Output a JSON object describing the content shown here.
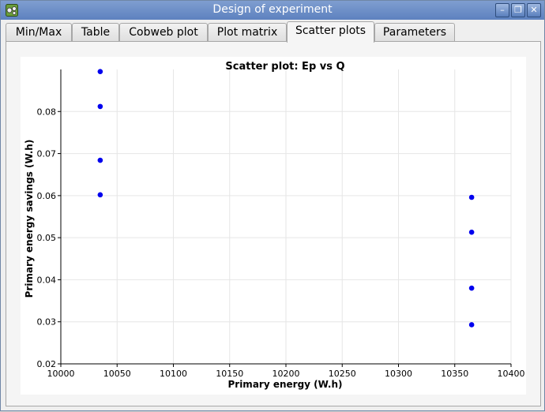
{
  "window": {
    "title": "Design of experiment",
    "buttons": {
      "minimize": "–",
      "restore": "❐",
      "close": "✕"
    }
  },
  "tabs": [
    {
      "label": "Min/Max",
      "active": false
    },
    {
      "label": "Table",
      "active": false
    },
    {
      "label": "Cobweb plot",
      "active": false
    },
    {
      "label": "Plot matrix",
      "active": false
    },
    {
      "label": "Scatter plots",
      "active": true
    },
    {
      "label": "Parameters",
      "active": false
    }
  ],
  "chart_data": {
    "type": "scatter",
    "title": "Scatter plot: Ep vs Q",
    "xlabel": "Primary energy (W.h)",
    "ylabel": "Primary energy savings (W.h)",
    "xlim": [
      10000,
      10400
    ],
    "ylim": [
      0.02,
      0.09
    ],
    "xticks": [
      "10000",
      "10050",
      "10100",
      "10150",
      "10200",
      "10250",
      "10300",
      "10350",
      "10400"
    ],
    "yticks": [
      "0.02",
      "0.03",
      "0.04",
      "0.05",
      "0.06",
      "0.07",
      "0.08"
    ],
    "grid": true,
    "color": "#0000ee",
    "points": [
      {
        "x": 10035,
        "y": 0.0895
      },
      {
        "x": 10035,
        "y": 0.0812
      },
      {
        "x": 10035,
        "y": 0.0684
      },
      {
        "x": 10035,
        "y": 0.0602
      },
      {
        "x": 10365,
        "y": 0.0596
      },
      {
        "x": 10365,
        "y": 0.0513
      },
      {
        "x": 10365,
        "y": 0.038
      },
      {
        "x": 10365,
        "y": 0.0293
      }
    ]
  }
}
